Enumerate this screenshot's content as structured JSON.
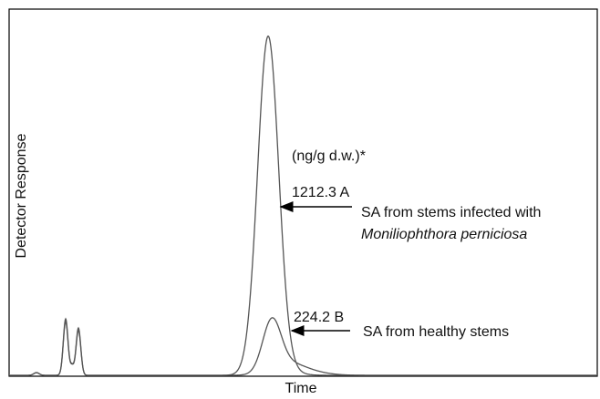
{
  "y_axis_label": "Detector Response",
  "x_axis_label": "Time",
  "units_note": "(ng/g d.w.)*",
  "annotations": [
    {
      "value_label": "1212.3 A",
      "description": [
        "SA from stems infected with",
        "Moniliophthora perniciosa"
      ]
    },
    {
      "value_label": "224.2 B",
      "description": [
        "SA from healthy stems"
      ]
    }
  ]
}
